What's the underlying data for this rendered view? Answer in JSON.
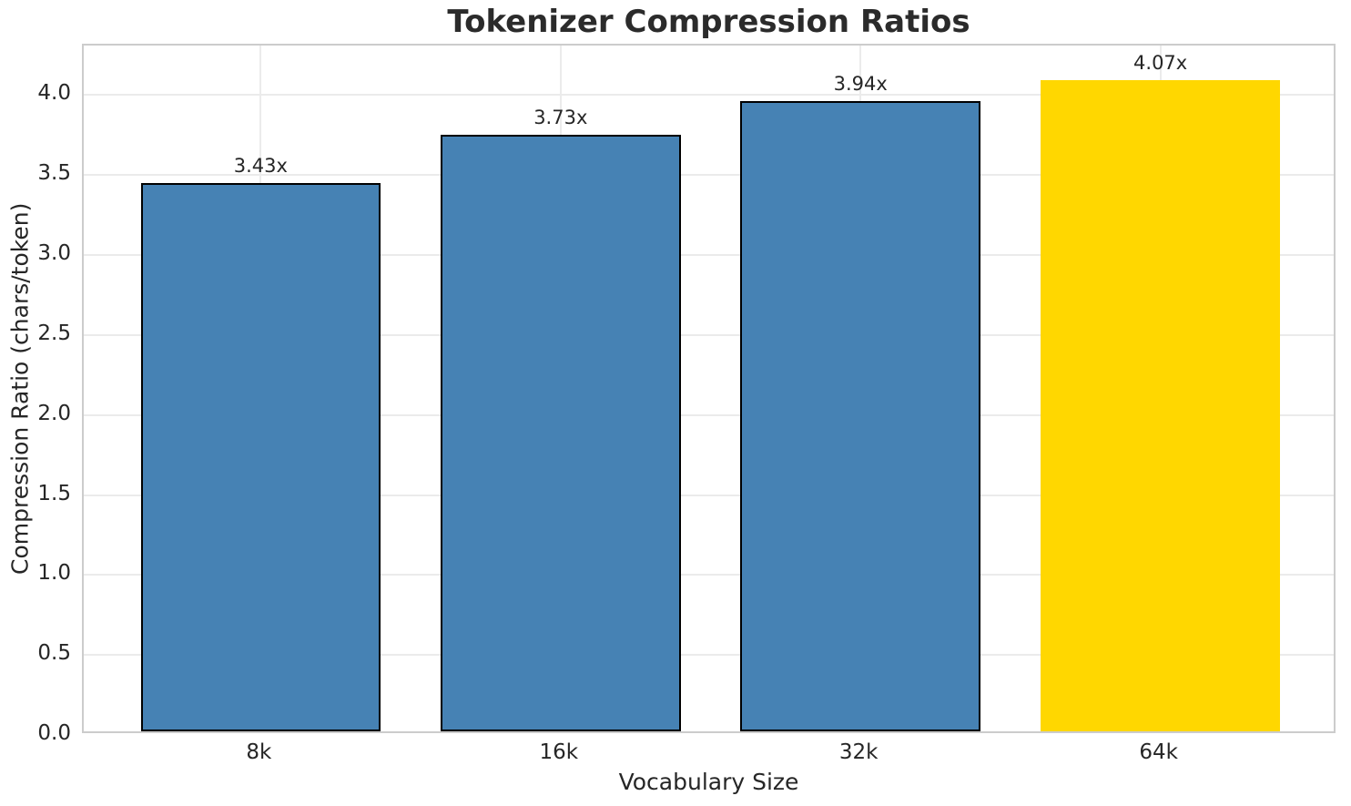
{
  "chart_data": {
    "type": "bar",
    "title": "Tokenizer Compression Ratios",
    "xlabel": "Vocabulary Size",
    "ylabel": "Compression Ratio (chars/token)",
    "categories": [
      "8k",
      "16k",
      "32k",
      "64k"
    ],
    "values": [
      3.43,
      3.73,
      3.94,
      4.07
    ],
    "bar_labels": [
      "3.43x",
      "3.73x",
      "3.94x",
      "4.07x"
    ],
    "bar_colors": [
      "#4682b4",
      "#4682b4",
      "#4682b4",
      "#ffd700"
    ],
    "bar_edge_colors": [
      "#000000",
      "#000000",
      "#000000",
      "none"
    ],
    "highlighted_category": "64k",
    "yticks": [
      "0.0",
      "0.5",
      "1.0",
      "1.5",
      "2.0",
      "2.5",
      "3.0",
      "3.5",
      "4.0"
    ],
    "ylim": [
      0,
      4.31
    ],
    "xlim": [
      -0.59,
      3.59
    ],
    "bar_width": 0.8,
    "grid": true,
    "legend": "none",
    "colors": {
      "grid": "#ebebeb",
      "spine": "#cccccc",
      "text": "#262626",
      "background": "#ffffff",
      "title": "#2b2b2b"
    }
  }
}
